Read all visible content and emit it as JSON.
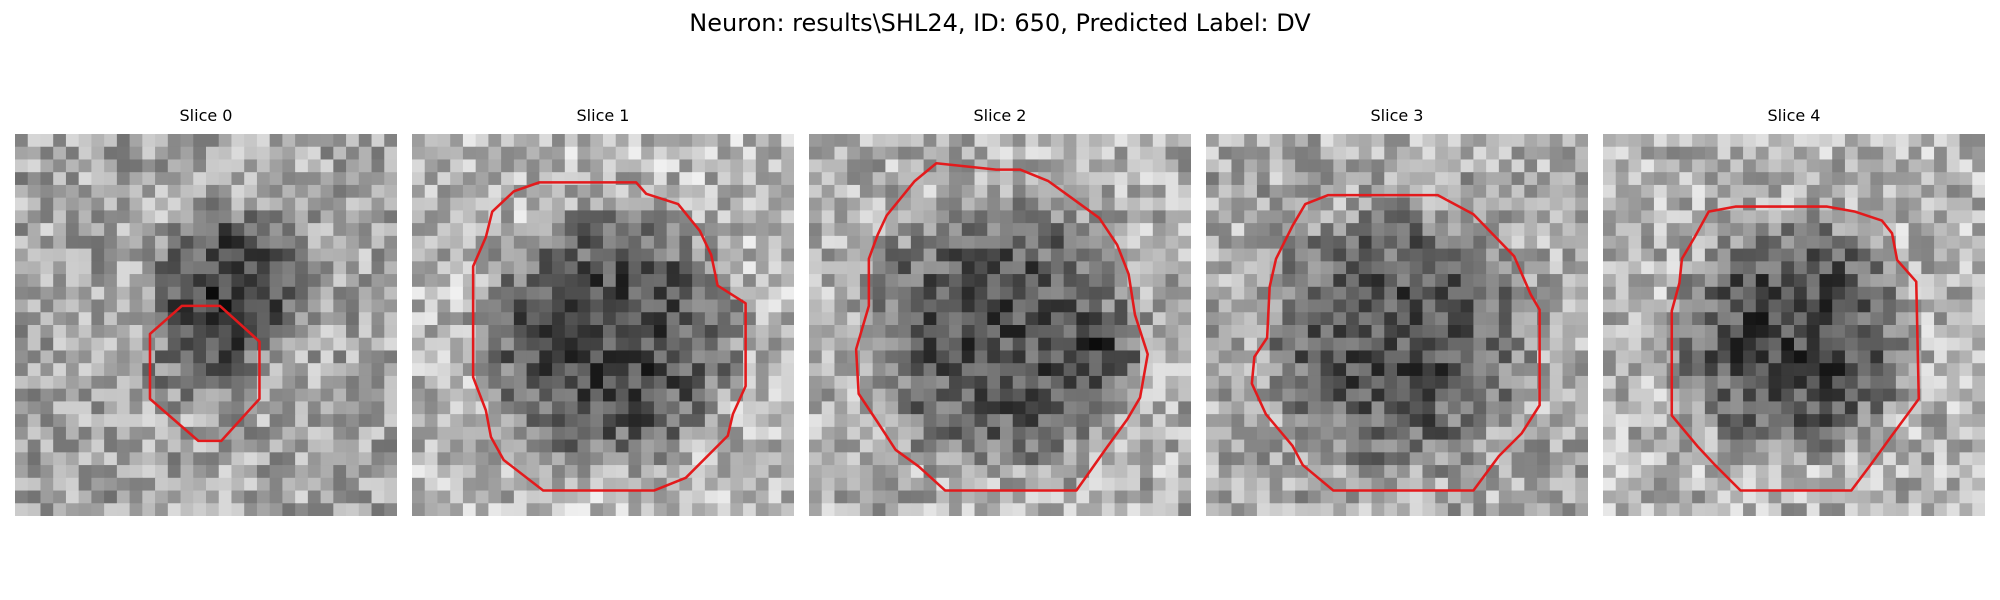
{
  "title": "Neuron: results\\SHL24, ID: 650, Predicted Label: DV",
  "colors": {
    "contour": "#e31a1c",
    "image_cmap": "gray"
  },
  "panels": [
    {
      "title": "Slice 0"
    },
    {
      "title": "Slice 1"
    },
    {
      "title": "Slice 2"
    },
    {
      "title": "Slice 3"
    },
    {
      "title": "Slice 4"
    }
  ]
}
